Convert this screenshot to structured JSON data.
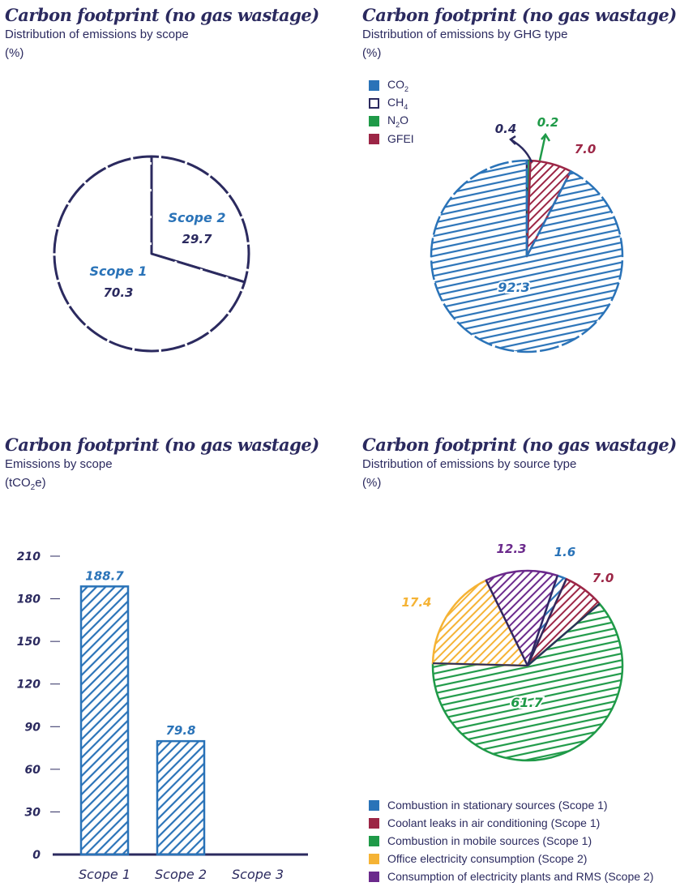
{
  "colors": {
    "ink": "#2b2a5f",
    "blue": "#2a73b8",
    "green": "#1f9a48",
    "red": "#9c2646",
    "orange": "#f5b335",
    "purple": "#6b2a8c"
  },
  "panel1": {
    "title": "Carbon footprint (no gas wastage)",
    "subtitle": "Distribution of emissions by scope",
    "unit": "(%)"
  },
  "panel2": {
    "title": "Carbon footprint (no gas wastage)",
    "subtitle": "Distribution of emissions by GHG type",
    "unit": "(%)",
    "legend": [
      {
        "main": "CO",
        "sub": "2",
        "tail": "",
        "color": "#2a73b8"
      },
      {
        "main": "CH",
        "sub": "4",
        "tail": "",
        "color": "#ffffff"
      },
      {
        "main": "N",
        "sub": "2",
        "tail": "O",
        "color": "#1f9a48"
      },
      {
        "main": "GFEI",
        "sub": "",
        "tail": "",
        "color": "#9c2646"
      }
    ]
  },
  "panel3": {
    "title": "Carbon footprint (no gas wastage)",
    "subtitle": "Emissions by scope",
    "unit_main": "(tCO",
    "unit_sub": "2",
    "unit_tail": "e)"
  },
  "panel4": {
    "title": "Carbon footprint (no gas wastage)",
    "subtitle": "Distribution of emissions by source type",
    "unit": "(%)",
    "legend": [
      {
        "label": "Combustion in stationary sources (Scope 1)",
        "color": "#2a73b8"
      },
      {
        "label": "Coolant leaks in air conditioning (Scope 1)",
        "color": "#9c2646"
      },
      {
        "label": "Combustion in mobile sources (Scope 1)",
        "color": "#1f9a48"
      },
      {
        "label": "Office electricity consumption (Scope 2)",
        "color": "#f5b335"
      },
      {
        "label": "Consumption of electricity plants and RMS (Scope 2)",
        "color": "#6b2a8c"
      }
    ]
  },
  "chart_data": [
    {
      "type": "pie",
      "title": "Carbon footprint (no gas wastage)",
      "subtitle": "Distribution of emissions by scope",
      "unit": "(%)",
      "slices": [
        {
          "label": "Scope 2",
          "value": 29.7,
          "value_label": "29.7",
          "color": "#ffffff"
        },
        {
          "label": "Scope 1",
          "value": 70.3,
          "value_label": "70.3",
          "color": "#ffffff"
        }
      ]
    },
    {
      "type": "pie",
      "title": "Carbon footprint (no gas wastage)",
      "subtitle": "Distribution of emissions by GHG type",
      "unit": "(%)",
      "legend_position": "top-left",
      "slices": [
        {
          "label": "CH4",
          "value": 0.4,
          "value_label": "0.4",
          "color": "#ffffff"
        },
        {
          "label": "N2O",
          "value": 0.2,
          "value_label": "0.2",
          "color": "#1f9a48"
        },
        {
          "label": "GFEI",
          "value": 7.0,
          "value_label": "7.0",
          "color": "#9c2646"
        },
        {
          "label": "CO2",
          "value": 92.3,
          "value_label": "92.3",
          "color": "#2a73b8"
        }
      ]
    },
    {
      "type": "bar",
      "title": "Carbon footprint (no gas wastage)",
      "subtitle": "Emissions by scope",
      "unit": "(tCO2e)",
      "categories": [
        "Scope 1",
        "Scope 2",
        "Scope 3"
      ],
      "values": [
        188.7,
        79.8,
        0
      ],
      "value_labels": [
        "188.7",
        "79.8",
        ""
      ],
      "ylim": [
        0,
        210
      ],
      "yticks": [
        0,
        30,
        60,
        90,
        120,
        150,
        180,
        210
      ],
      "grid": false
    },
    {
      "type": "pie",
      "title": "Carbon footprint (no gas wastage)",
      "subtitle": "Distribution of emissions by source type",
      "unit": "(%)",
      "legend_position": "bottom",
      "slices": [
        {
          "label": "Combustion in stationary sources (Scope 1)",
          "value": 1.6,
          "value_label": "1.6",
          "color": "#2a73b8"
        },
        {
          "label": "Coolant leaks in air conditioning (Scope 1)",
          "value": 7.0,
          "value_label": "7.0",
          "color": "#9c2646"
        },
        {
          "label": "Combustion in mobile sources (Scope 1)",
          "value": 61.7,
          "value_label": "61.7",
          "color": "#1f9a48"
        },
        {
          "label": "Office electricity consumption (Scope 2)",
          "value": 17.4,
          "value_label": "17.4",
          "color": "#f5b335"
        },
        {
          "label": "Consumption of electricity plants and RMS (Scope 2)",
          "value": 12.3,
          "value_label": "12.3",
          "color": "#6b2a8c"
        }
      ]
    }
  ]
}
